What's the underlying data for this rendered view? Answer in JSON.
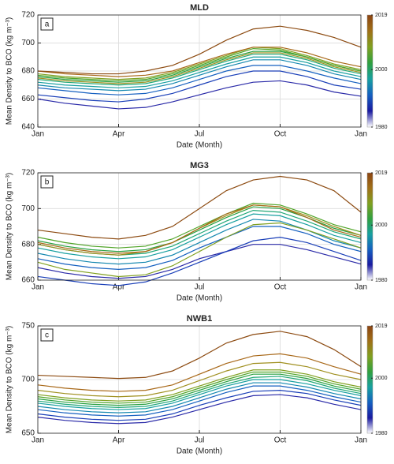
{
  "chart_data": [
    {
      "type": "line",
      "title": "MLD",
      "panel_label": "a",
      "xlabel": "Date (Month)",
      "ylabel": "Mean Density to BCO (kg m⁻³)",
      "x": [
        0,
        1,
        2,
        3,
        4,
        5,
        6,
        7,
        8,
        9,
        10,
        11,
        12
      ],
      "xlim": [
        0,
        12
      ],
      "xticks": [
        {
          "value": 0,
          "label": "Jan"
        },
        {
          "value": 3,
          "label": "Apr"
        },
        {
          "value": 6,
          "label": "Jul"
        },
        {
          "value": 9,
          "label": "Oct"
        },
        {
          "value": 12,
          "label": "Jan"
        }
      ],
      "ylim": [
        640,
        720
      ],
      "yticks": [
        640,
        660,
        680,
        700,
        720
      ],
      "grid": true,
      "series": [
        {
          "color": "#2a2aa8",
          "values": [
            660,
            657,
            655,
            653,
            654,
            658,
            663,
            668,
            672,
            673,
            670,
            665,
            662
          ]
        },
        {
          "color": "#1a3fb8",
          "values": [
            663,
            661,
            659,
            658,
            660,
            664,
            670,
            676,
            680,
            680,
            676,
            670,
            667
          ]
        },
        {
          "color": "#1560c0",
          "values": [
            668,
            666,
            664,
            663,
            664,
            668,
            674,
            680,
            684,
            684,
            680,
            675,
            671
          ]
        },
        {
          "color": "#1588b0",
          "values": [
            670,
            668,
            667,
            666,
            667,
            671,
            677,
            683,
            688,
            688,
            684,
            678,
            674
          ]
        },
        {
          "color": "#18a0a0",
          "values": [
            672,
            670,
            669,
            668,
            669,
            673,
            679,
            685,
            690,
            690,
            686,
            680,
            676
          ]
        },
        {
          "color": "#20a878",
          "values": [
            674,
            672,
            671,
            670,
            671,
            675,
            681,
            687,
            692,
            692,
            688,
            682,
            678
          ]
        },
        {
          "color": "#28a040",
          "values": [
            676,
            674,
            673,
            672,
            673,
            677,
            683,
            689,
            694,
            694,
            690,
            684,
            680
          ]
        },
        {
          "color": "#50a428",
          "values": [
            677,
            675,
            674,
            673,
            674,
            678,
            684,
            690,
            696,
            695,
            690,
            684,
            680
          ]
        },
        {
          "color": "#80a020",
          "values": [
            678,
            676,
            675,
            674,
            675,
            679,
            685,
            691,
            697,
            696,
            691,
            685,
            681
          ]
        },
        {
          "color": "#a09020",
          "values": [
            675,
            673,
            672,
            671,
            672,
            676,
            682,
            688,
            693,
            693,
            689,
            683,
            679
          ]
        },
        {
          "color": "#a86818",
          "values": [
            680,
            678,
            677,
            676,
            677,
            680,
            686,
            692,
            697,
            697,
            693,
            687,
            683
          ]
        },
        {
          "color": "#8c4a10",
          "values": [
            680,
            679,
            678,
            678,
            680,
            684,
            692,
            702,
            710,
            712,
            709,
            704,
            697
          ]
        }
      ],
      "colorbar": {
        "colormap": [
          "#ffffff",
          "#1a1aa0",
          "#1560c0",
          "#18a0a0",
          "#30a040",
          "#80a020",
          "#a07018",
          "#8b4513"
        ],
        "lim": [
          1980,
          2019
        ],
        "ticks": [
          1980,
          2000,
          2019
        ]
      }
    },
    {
      "type": "line",
      "title": "MG3",
      "panel_label": "b",
      "xlabel": "Date (Month)",
      "ylabel": "Mean Density to BCO (kg m⁻³)",
      "x": [
        0,
        1,
        2,
        3,
        4,
        5,
        6,
        7,
        8,
        9,
        10,
        11,
        12
      ],
      "xlim": [
        0,
        12
      ],
      "xticks": [
        {
          "value": 0,
          "label": "Jan"
        },
        {
          "value": 3,
          "label": "Apr"
        },
        {
          "value": 6,
          "label": "Jul"
        },
        {
          "value": 9,
          "label": "Oct"
        },
        {
          "value": 12,
          "label": "Jan"
        }
      ],
      "ylim": [
        660,
        720
      ],
      "yticks": [
        660,
        680,
        700,
        720
      ],
      "grid": true,
      "series": [
        {
          "color": "#2a2aa8",
          "values": [
            667,
            664,
            662,
            661,
            662,
            666,
            672,
            676,
            680,
            680,
            677,
            673,
            669
          ]
        },
        {
          "color": "#1a3fb8",
          "values": [
            662,
            660,
            658,
            657,
            659,
            664,
            670,
            676,
            682,
            684,
            681,
            676,
            671
          ]
        },
        {
          "color": "#1560c0",
          "values": [
            672,
            669,
            667,
            666,
            667,
            671,
            678,
            684,
            690,
            690,
            686,
            680,
            676
          ]
        },
        {
          "color": "#1588b0",
          "values": [
            675,
            672,
            670,
            669,
            670,
            674,
            681,
            688,
            694,
            693,
            688,
            682,
            678
          ]
        },
        {
          "color": "#18a0a0",
          "values": [
            678,
            675,
            673,
            672,
            673,
            677,
            684,
            691,
            697,
            696,
            691,
            685,
            681
          ]
        },
        {
          "color": "#20a878",
          "values": [
            680,
            677,
            675,
            674,
            675,
            679,
            686,
            693,
            699,
            698,
            693,
            687,
            683
          ]
        },
        {
          "color": "#28a040",
          "values": [
            682,
            679,
            677,
            676,
            677,
            681,
            688,
            695,
            701,
            700,
            695,
            689,
            685
          ]
        },
        {
          "color": "#50a428",
          "values": [
            684,
            681,
            679,
            678,
            679,
            683,
            690,
            697,
            703,
            702,
            697,
            691,
            687
          ]
        },
        {
          "color": "#80a020",
          "values": [
            670,
            666,
            664,
            662,
            663,
            668,
            676,
            684,
            691,
            692,
            688,
            683,
            678
          ]
        },
        {
          "color": "#a09020",
          "values": [
            680,
            677,
            675,
            674,
            676,
            681,
            689,
            696,
            702,
            701,
            696,
            690,
            685
          ]
        },
        {
          "color": "#a86818",
          "values": [
            681,
            678,
            676,
            675,
            676,
            681,
            689,
            697,
            702,
            701,
            695,
            688,
            684
          ]
        },
        {
          "color": "#8c4a10",
          "values": [
            688,
            686,
            684,
            683,
            685,
            690,
            700,
            710,
            716,
            718,
            716,
            710,
            698
          ]
        }
      ],
      "colorbar": {
        "colormap": [
          "#ffffff",
          "#1a1aa0",
          "#1560c0",
          "#18a0a0",
          "#30a040",
          "#80a020",
          "#a07018",
          "#8b4513"
        ],
        "lim": [
          1980,
          2019
        ],
        "ticks": [
          1980,
          2000,
          2019
        ]
      }
    },
    {
      "type": "line",
      "title": "NWB1",
      "panel_label": "c",
      "xlabel": "Date (Month)",
      "ylabel": "Mean Density to BCO (kg m⁻³)",
      "x": [
        0,
        1,
        2,
        3,
        4,
        5,
        6,
        7,
        8,
        9,
        10,
        11,
        12
      ],
      "xlim": [
        0,
        12
      ],
      "xticks": [
        {
          "value": 0,
          "label": "Jan"
        },
        {
          "value": 3,
          "label": "Apr"
        },
        {
          "value": 6,
          "label": "Jul"
        },
        {
          "value": 9,
          "label": "Oct"
        },
        {
          "value": 12,
          "label": "Jan"
        }
      ],
      "ylim": [
        650,
        750
      ],
      "yticks": [
        650,
        700,
        750
      ],
      "grid": true,
      "series": [
        {
          "color": "#2a2aa8",
          "values": [
            665,
            662,
            660,
            659,
            660,
            665,
            672,
            679,
            685,
            686,
            683,
            677,
            672
          ]
        },
        {
          "color": "#1a3fb8",
          "values": [
            668,
            665,
            663,
            662,
            663,
            668,
            676,
            683,
            689,
            690,
            687,
            681,
            676
          ]
        },
        {
          "color": "#1560c0",
          "values": [
            672,
            669,
            667,
            666,
            667,
            672,
            680,
            688,
            694,
            694,
            690,
            684,
            679
          ]
        },
        {
          "color": "#1588b0",
          "values": [
            675,
            672,
            670,
            669,
            670,
            675,
            683,
            691,
            697,
            697,
            693,
            687,
            682
          ]
        },
        {
          "color": "#18a0a0",
          "values": [
            678,
            675,
            673,
            672,
            673,
            678,
            686,
            694,
            700,
            700,
            696,
            690,
            685
          ]
        },
        {
          "color": "#20a878",
          "values": [
            680,
            677,
            675,
            674,
            675,
            680,
            688,
            696,
            702,
            703,
            699,
            692,
            687
          ]
        },
        {
          "color": "#28a040",
          "values": [
            682,
            679,
            677,
            676,
            677,
            682,
            690,
            698,
            705,
            705,
            701,
            694,
            689
          ]
        },
        {
          "color": "#50a428",
          "values": [
            684,
            681,
            679,
            678,
            679,
            684,
            692,
            700,
            707,
            707,
            703,
            696,
            691
          ]
        },
        {
          "color": "#80a020",
          "values": [
            686,
            683,
            681,
            680,
            681,
            686,
            694,
            702,
            709,
            709,
            705,
            698,
            693
          ]
        },
        {
          "color": "#a09020",
          "values": [
            690,
            687,
            685,
            684,
            685,
            690,
            699,
            708,
            715,
            716,
            712,
            705,
            700
          ]
        },
        {
          "color": "#a86818",
          "values": [
            695,
            692,
            690,
            689,
            690,
            695,
            705,
            715,
            722,
            724,
            720,
            712,
            705
          ]
        },
        {
          "color": "#8c4a10",
          "values": [
            704,
            703,
            702,
            701,
            702,
            708,
            720,
            734,
            742,
            745,
            740,
            728,
            712
          ]
        }
      ],
      "colorbar": {
        "colormap": [
          "#ffffff",
          "#1a1aa0",
          "#1560c0",
          "#18a0a0",
          "#30a040",
          "#80a020",
          "#a07018",
          "#8b4513"
        ],
        "lim": [
          1980,
          2019
        ],
        "ticks": [
          1980,
          2000,
          2019
        ]
      }
    }
  ]
}
